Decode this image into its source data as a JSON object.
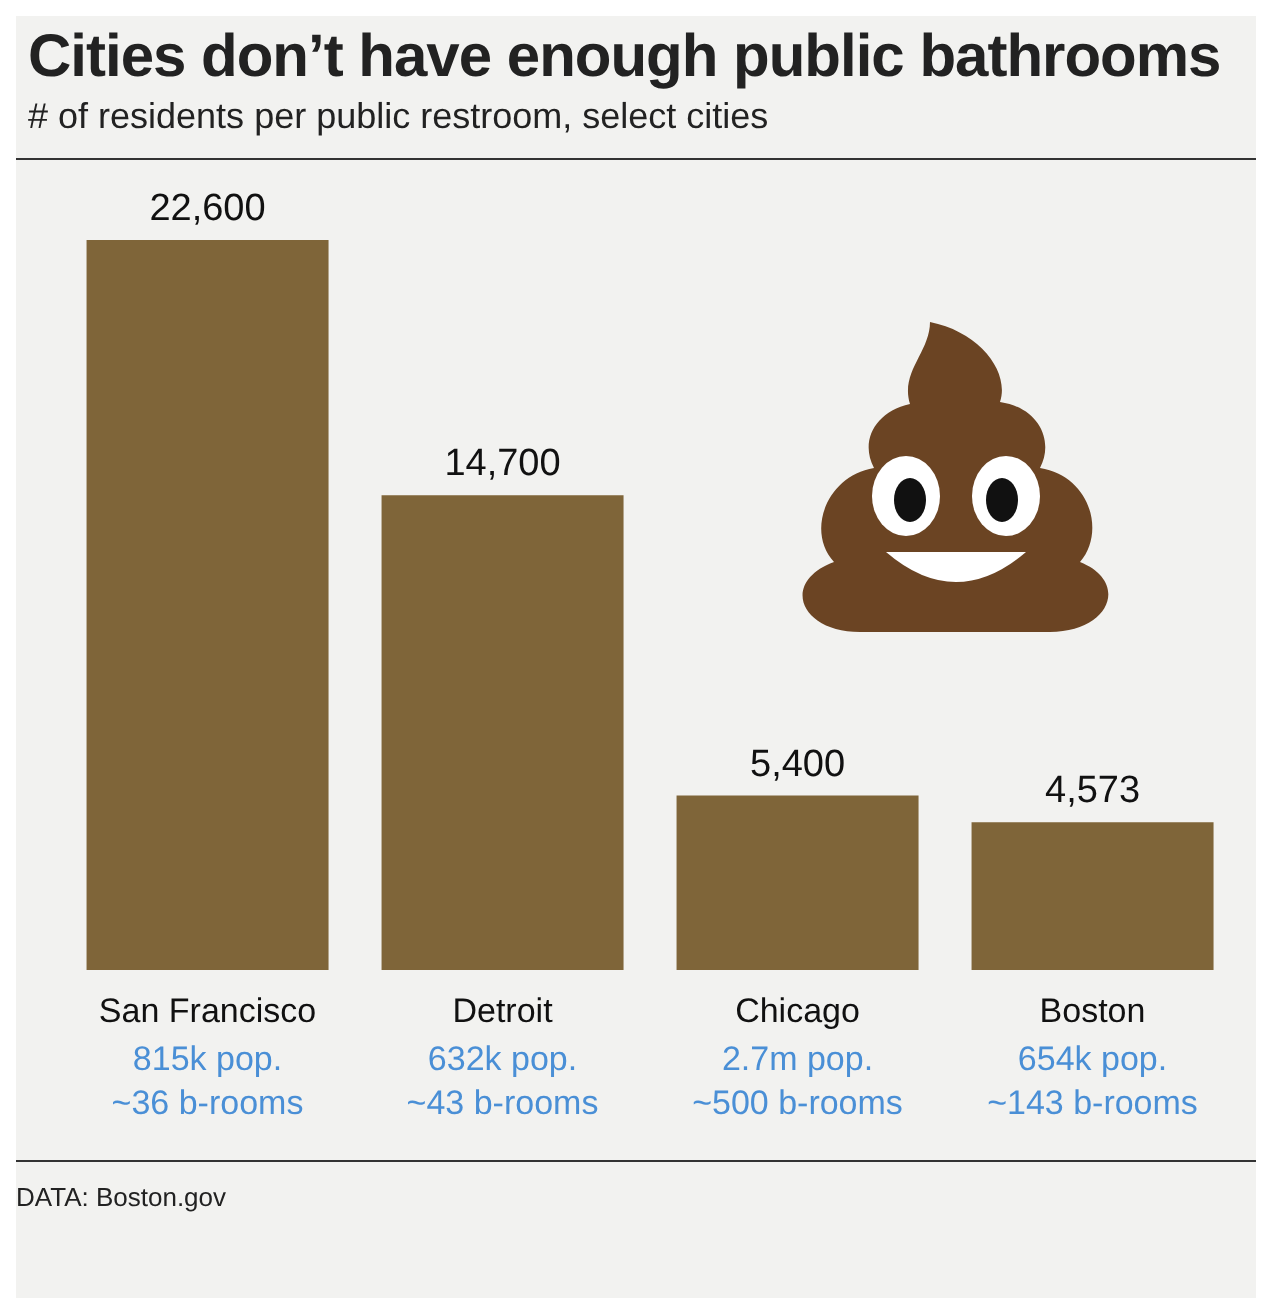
{
  "chart_data": {
    "type": "bar",
    "title": "Cities don’t have enough public bathrooms",
    "subtitle": "# of residents per public restroom, select cities",
    "categories": [
      "San Francisco",
      "Detroit",
      "Chicago",
      "Boston"
    ],
    "values": [
      22600,
      14700,
      5400,
      4573
    ],
    "color": "#7f6539",
    "value_labels": [
      "22,600",
      "14,700",
      "5,400",
      "4,573"
    ],
    "annotations": [
      "815k pop.",
      "~36 b-rooms",
      "632k pop.",
      "~43 b-rooms",
      "2.7m pop.",
      "~500 b-rooms",
      "654k pop.",
      "~143 b-rooms",
      "DATA: Boston.gov"
    ]
  }
}
